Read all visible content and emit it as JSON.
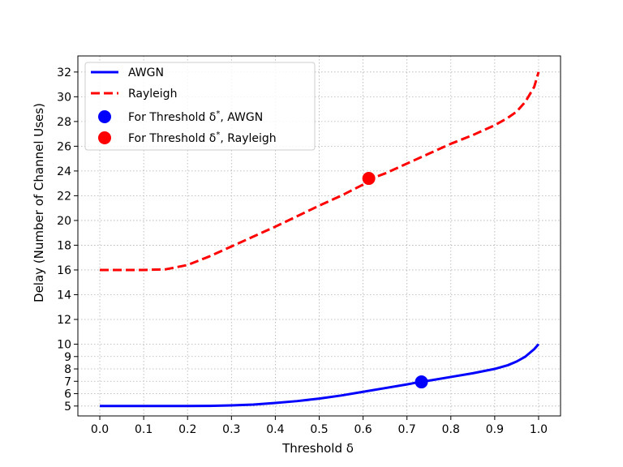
{
  "chart_data": {
    "type": "line",
    "xlabel": "Threshold δ",
    "ylabel": "Delay (Number of Channel Uses)",
    "xlim": [
      -0.05,
      1.05
    ],
    "ylim": [
      4.2,
      33.3
    ],
    "xticks": [
      0.0,
      0.1,
      0.2,
      0.3,
      0.4,
      0.5,
      0.6,
      0.7,
      0.8,
      0.9,
      1.0
    ],
    "xtick_labels": [
      "0.0",
      "0.1",
      "0.2",
      "0.3",
      "0.4",
      "0.5",
      "0.6",
      "0.7",
      "0.8",
      "0.9",
      "1.0"
    ],
    "yticks": [
      5,
      6,
      7,
      8,
      9,
      10,
      12,
      14,
      16,
      18,
      20,
      22,
      24,
      26,
      28,
      30,
      32
    ],
    "ytick_labels": [
      "5",
      "6",
      "7",
      "8",
      "9",
      "10",
      "12",
      "14",
      "16",
      "18",
      "20",
      "22",
      "24",
      "26",
      "28",
      "30",
      "32"
    ],
    "grid": true,
    "legend_position": "upper-left",
    "series": [
      {
        "name": "AWGN",
        "color": "#0000ff",
        "style": "solid",
        "x": [
          0.0,
          0.1,
          0.2,
          0.25,
          0.3,
          0.35,
          0.4,
          0.45,
          0.5,
          0.55,
          0.6,
          0.65,
          0.7,
          0.73,
          0.75,
          0.8,
          0.85,
          0.9,
          0.93,
          0.95,
          0.97,
          0.99,
          1.0
        ],
        "y": [
          5.0,
          5.0,
          5.0,
          5.01,
          5.05,
          5.12,
          5.25,
          5.4,
          5.6,
          5.85,
          6.15,
          6.45,
          6.75,
          6.95,
          7.05,
          7.35,
          7.65,
          8.0,
          8.3,
          8.6,
          9.0,
          9.6,
          10.0
        ]
      },
      {
        "name": "Rayleigh",
        "color": "#ff0000",
        "style": "dashed",
        "x": [
          0.0,
          0.05,
          0.1,
          0.15,
          0.2,
          0.25,
          0.3,
          0.35,
          0.4,
          0.45,
          0.5,
          0.55,
          0.6,
          0.62,
          0.65,
          0.7,
          0.75,
          0.8,
          0.85,
          0.9,
          0.93,
          0.95,
          0.97,
          0.99,
          1.0
        ],
        "y": [
          16.0,
          16.0,
          16.0,
          16.05,
          16.4,
          17.1,
          17.9,
          18.7,
          19.5,
          20.35,
          21.2,
          22.0,
          22.9,
          23.4,
          23.8,
          24.6,
          25.4,
          26.2,
          26.9,
          27.7,
          28.3,
          28.8,
          29.6,
          30.8,
          32.0
        ]
      }
    ],
    "points": [
      {
        "name": "For Threshold δ*, AWGN",
        "label_main": "For Threshold δ",
        "label_sup": "*",
        "label_tail": ", AWGN",
        "x": 0.733,
        "y": 6.95,
        "color": "#0000ff"
      },
      {
        "name": "For Threshold δ*, Rayleigh",
        "label_main": "For Threshold δ",
        "label_sup": "*",
        "label_tail": ", Rayleigh",
        "x": 0.613,
        "y": 23.4,
        "color": "#ff0000"
      }
    ]
  }
}
